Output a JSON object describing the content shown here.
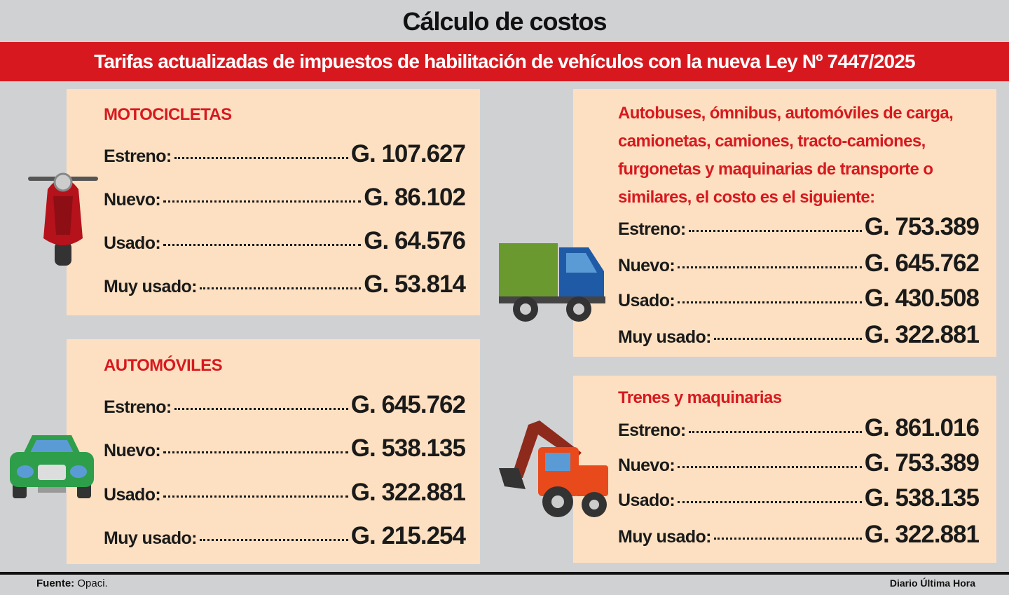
{
  "header": {
    "title": "Cálculo de costos",
    "subtitle": "Tarifas actualizadas de impuestos de habilitación de vehículos con la nueva Ley Nº 7447/2025"
  },
  "panels": [
    {
      "heading": "MOTOCICLETAS",
      "rows": [
        [
          "Estreno:",
          "G. 107.627"
        ],
        [
          "Nuevo:",
          "G. 86.102"
        ],
        [
          "Usado:",
          "G. 64.576"
        ],
        [
          "Muy usado:",
          "G. 53.814"
        ]
      ]
    },
    {
      "heading": "AUTOMÓVILES",
      "rows": [
        [
          "Estreno:",
          "G. 645.762"
        ],
        [
          "Nuevo:",
          "G. 538.135"
        ],
        [
          "Usado:",
          "G. 322.881"
        ],
        [
          "Muy usado:",
          "G. 215.254"
        ]
      ]
    },
    {
      "heading": "Autobuses, ómnibus, automóviles de carga, camionetas, camiones, tracto-camiones, furgonetas y maquinarias de transporte o similares, el costo es el siguiente:",
      "rows": [
        [
          "Estreno:",
          "G. 753.389"
        ],
        [
          "Nuevo:",
          "G. 645.762"
        ],
        [
          "Usado:",
          "G. 430.508"
        ],
        [
          "Muy usado:",
          "G. 322.881"
        ]
      ]
    },
    {
      "heading": "Trenes y maquinarias",
      "rows": [
        [
          "Estreno:",
          "G. 861.016"
        ],
        [
          "Nuevo:",
          "G. 753.389"
        ],
        [
          "Usado:",
          "G. 538.135"
        ],
        [
          "Muy usado:",
          "G. 322.881"
        ]
      ]
    }
  ],
  "footer": {
    "source_label": "Fuente:",
    "source": "Opaci.",
    "credit": "Diario Última Hora"
  }
}
